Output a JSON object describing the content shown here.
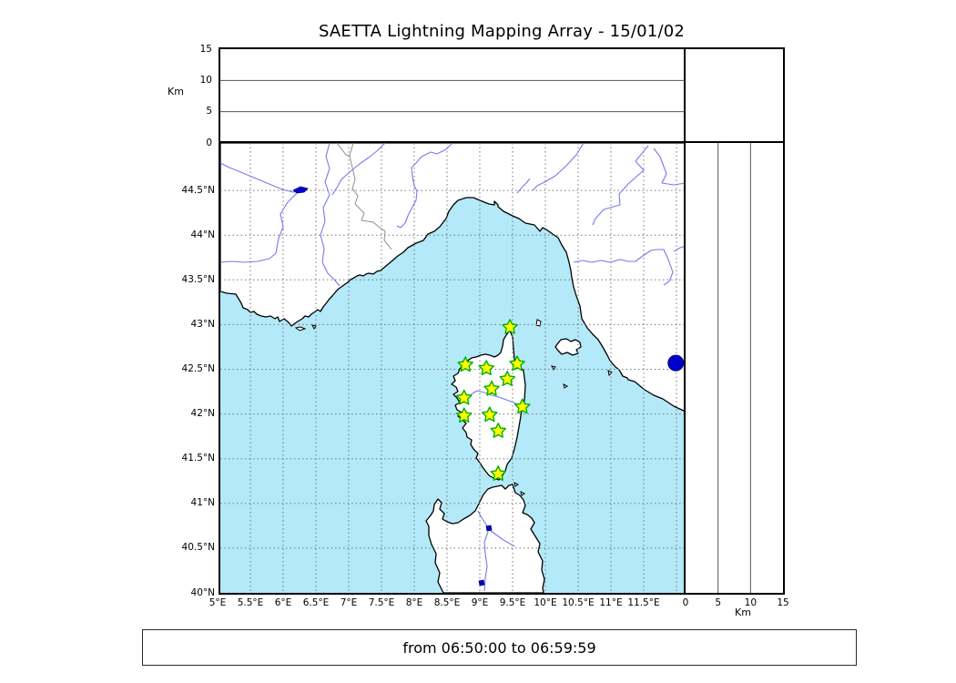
{
  "title": "SAETTA Lightning Mapping Array - 15/01/02",
  "time_label": "from 06:50:00 to 06:59:59",
  "axes": {
    "altitude": {
      "unit": "Km",
      "ticks": [
        {
          "value": 0,
          "label": "0"
        },
        {
          "value": 5,
          "label": "5"
        },
        {
          "value": 10,
          "label": "10"
        },
        {
          "value": 15,
          "label": "15"
        }
      ],
      "max": 15,
      "gridlines_at": [
        5,
        10
      ]
    },
    "latitude_ticks": [
      {
        "value": 44.5,
        "label": "44.5°N"
      },
      {
        "value": 44.0,
        "label": "44°N"
      },
      {
        "value": 43.5,
        "label": "43.5°N"
      },
      {
        "value": 43.0,
        "label": "43°N"
      },
      {
        "value": 42.5,
        "label": "42.5°N"
      },
      {
        "value": 42.0,
        "label": "42°N"
      },
      {
        "value": 41.5,
        "label": "41.5°N"
      },
      {
        "value": 41.0,
        "label": "41°N"
      },
      {
        "value": 40.5,
        "label": "40.5°N"
      },
      {
        "value": 40.0,
        "label": "40°N"
      }
    ],
    "longitude_ticks": [
      {
        "value": 5.0,
        "label": "5°E"
      },
      {
        "value": 5.5,
        "label": "5.5°E"
      },
      {
        "value": 6.0,
        "label": "6°E"
      },
      {
        "value": 6.5,
        "label": "6.5°E"
      },
      {
        "value": 7.0,
        "label": "7°E"
      },
      {
        "value": 7.5,
        "label": "7.5°E"
      },
      {
        "value": 8.0,
        "label": "8°E"
      },
      {
        "value": 8.5,
        "label": "8.5°E"
      },
      {
        "value": 9.0,
        "label": "9°E"
      },
      {
        "value": 9.5,
        "label": "9.5°E"
      },
      {
        "value": 10.0,
        "label": "10°E"
      },
      {
        "value": 10.5,
        "label": "10.5°E"
      },
      {
        "value": 11.0,
        "label": "11°E"
      },
      {
        "value": 11.5,
        "label": "11.5°E"
      }
    ]
  },
  "stations": [
    {
      "lon": 9.46,
      "lat": 42.97
    },
    {
      "lon": 8.78,
      "lat": 42.55
    },
    {
      "lon": 9.1,
      "lat": 42.51
    },
    {
      "lon": 9.57,
      "lat": 42.56
    },
    {
      "lon": 9.42,
      "lat": 42.39
    },
    {
      "lon": 9.18,
      "lat": 42.28
    },
    {
      "lon": 8.76,
      "lat": 42.18
    },
    {
      "lon": 9.65,
      "lat": 42.08
    },
    {
      "lon": 9.15,
      "lat": 41.99
    },
    {
      "lon": 8.76,
      "lat": 41.98
    },
    {
      "lon": 9.28,
      "lat": 41.81
    },
    {
      "lon": 9.28,
      "lat": 41.33
    }
  ],
  "lake_marker": {
    "lon": 11.99,
    "lat": 42.57
  },
  "colors": {
    "sea": "#b3e9f8",
    "land": "#ffffff",
    "coastline": "#000000",
    "river": "#7878ee",
    "country_border": "#8f8f8f",
    "grid": "#777777",
    "panel_grid": "#555555",
    "station_fill": "#ffff00",
    "station_edge": "#00b000",
    "lake_fill": "#0000cc",
    "lake_edge": "#000080"
  },
  "chart_data": {
    "type": "map",
    "title": "SAETTA Lightning Mapping Array - 15/01/02",
    "time_range": "from 06:50:00 to 06:59:59",
    "map_extent": {
      "lon": [
        5.0,
        12.14
      ],
      "lat": [
        40.0,
        45.03
      ]
    },
    "altitude_axis_km": [
      0,
      15
    ],
    "stations_lon_lat": [
      [
        9.46,
        42.97
      ],
      [
        8.78,
        42.55
      ],
      [
        9.1,
        42.51
      ],
      [
        9.57,
        42.56
      ],
      [
        9.42,
        42.39
      ],
      [
        9.18,
        42.28
      ],
      [
        8.76,
        42.18
      ],
      [
        9.65,
        42.08
      ],
      [
        9.15,
        41.99
      ],
      [
        8.76,
        41.98
      ],
      [
        9.28,
        41.81
      ],
      [
        9.28,
        41.33
      ]
    ],
    "lake_marker_lon_lat": [
      11.99,
      42.57
    ],
    "grid_step_deg": 0.5,
    "notes_visible_panels": [
      "longitude-altitude panel (empty)",
      "latitude-altitude panel (empty)",
      "corner histogram box (empty)"
    ]
  }
}
